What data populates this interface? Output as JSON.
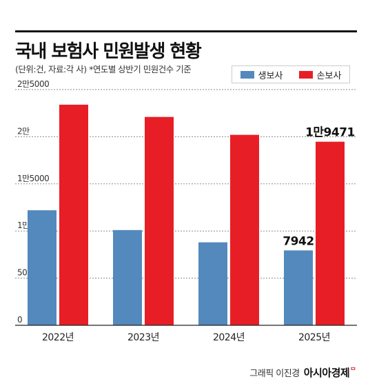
{
  "title": "국내 보험사 민원발생 현황",
  "subtitle": "(단위:건, 자료:각 사)  *연도별 상반기 민원건수 기준",
  "legend": {
    "life": "생보사",
    "nonlife": "손보사"
  },
  "colors": {
    "life": "#5389bd",
    "nonlife": "#e81e26"
  },
  "credit": {
    "text": "그래픽 이진경",
    "brand": "아시아경제"
  },
  "chart_data": {
    "type": "bar",
    "categories": [
      "2022년",
      "2023년",
      "2024년",
      "2025년"
    ],
    "series": [
      {
        "name": "생보사",
        "values": [
          12200,
          10100,
          8800,
          7942
        ]
      },
      {
        "name": "손보사",
        "values": [
          23400,
          22100,
          20200,
          19471
        ]
      }
    ],
    "ylim": [
      0,
      25000
    ],
    "yticks": [
      0,
      5000,
      10000,
      15000,
      20000,
      25000
    ],
    "ytick_labels": [
      "0",
      "5000",
      "1만",
      "1만5000",
      "2만",
      "2만5000"
    ],
    "data_labels": [
      {
        "series": 0,
        "category": "2025년",
        "text": "7942"
      },
      {
        "series": 1,
        "category": "2025년",
        "text": "1만9471"
      }
    ],
    "grid": true
  }
}
